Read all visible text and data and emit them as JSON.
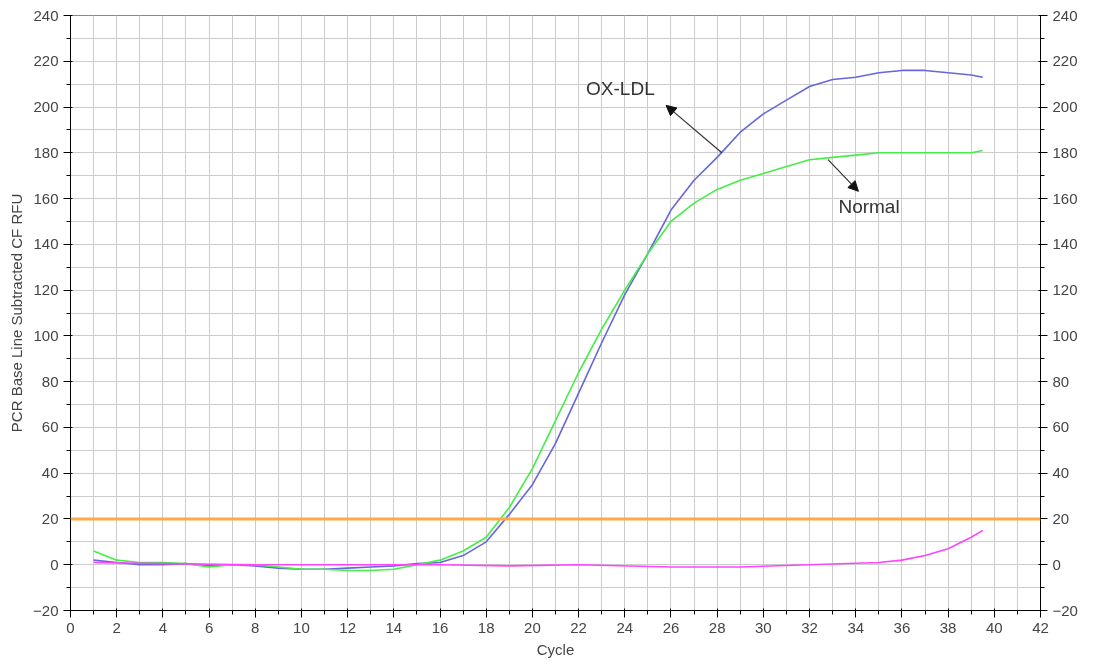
{
  "chart_data": {
    "type": "line",
    "xlabel": "Cycle",
    "ylabel": "PCR Base Line Subtracted CF RFU",
    "xlim": [
      0,
      42
    ],
    "xticks": [
      0,
      2,
      4,
      6,
      8,
      10,
      12,
      14,
      16,
      18,
      20,
      22,
      24,
      26,
      28,
      30,
      32,
      34,
      36,
      38,
      40,
      42
    ],
    "ylim": [
      -20,
      240
    ],
    "yticks": [
      -20,
      0,
      20,
      40,
      60,
      80,
      100,
      120,
      140,
      160,
      180,
      200,
      220,
      240
    ],
    "y2lim": [
      -20,
      240
    ],
    "y2ticks": [
      -20,
      0,
      20,
      40,
      60,
      80,
      100,
      120,
      140,
      160,
      180,
      200,
      220,
      240
    ],
    "grid": true,
    "line_style": "solid",
    "marker": "none",
    "series": [
      {
        "color": "#6666dd",
        "x": [
          1,
          2,
          3,
          4,
          5,
          6,
          7,
          8,
          9,
          10,
          11,
          12,
          13,
          14,
          15,
          16,
          17,
          18,
          19,
          20,
          21,
          22,
          23,
          24,
          25,
          26,
          27,
          28,
          29,
          30,
          31,
          32,
          33,
          34,
          35,
          36,
          37,
          38,
          39,
          39.5
        ],
        "values": [
          2,
          1,
          0,
          0,
          0.5,
          -0.5,
          0,
          -0.5,
          -1.5,
          -2,
          -2,
          -1.5,
          -1,
          -0.5,
          0.5,
          1,
          4,
          10,
          22,
          35,
          53,
          75,
          97,
          118,
          136,
          155,
          168,
          178,
          189,
          197,
          203,
          209,
          212,
          213,
          215,
          216,
          216,
          215,
          214,
          213
        ]
      },
      {
        "color": "#44ee44",
        "x": [
          1,
          2,
          3,
          4,
          5,
          6,
          7,
          8,
          9,
          10,
          11,
          12,
          13,
          14,
          15,
          16,
          17,
          18,
          19,
          20,
          21,
          22,
          23,
          24,
          25,
          26,
          27,
          28,
          29,
          30,
          31,
          32,
          33,
          34,
          35,
          36,
          37,
          38,
          39,
          39.5
        ],
        "values": [
          6,
          2,
          1,
          1,
          0.5,
          -1,
          0,
          0,
          -1,
          -2,
          -2,
          -2.5,
          -2.5,
          -2,
          0,
          2,
          6,
          12,
          25,
          42,
          63,
          84,
          103,
          120,
          136,
          150,
          158,
          164,
          168,
          171,
          174,
          177,
          178,
          179,
          180,
          180,
          180,
          180,
          180,
          181
        ]
      },
      {
        "color": "#ff44ff",
        "x": [
          1,
          4,
          8,
          12,
          16,
          19,
          22,
          26,
          29,
          32,
          35,
          36,
          37,
          38,
          39,
          39.5
        ],
        "values": [
          1,
          0.5,
          0,
          0,
          0,
          -0.5,
          0,
          -1,
          -1,
          0,
          1,
          2,
          4,
          7,
          12,
          15
        ]
      }
    ],
    "ref_lines": [
      {
        "axis": "y",
        "value": 20,
        "label": null,
        "color": "#ffaa44"
      }
    ],
    "annotations": [
      {
        "text": "OX-LDL",
        "x": 28.2,
        "y": 180
      },
      {
        "text": "Normal",
        "x": 32.8,
        "y": 177
      }
    ]
  }
}
